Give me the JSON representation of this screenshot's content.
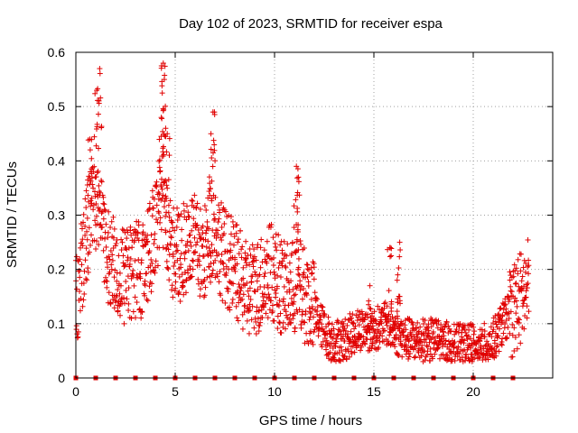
{
  "chart_data": {
    "type": "scatter",
    "title": "Day 102 of 2023, SRMTID for receiver espa",
    "xlabel": "GPS time / hours",
    "ylabel": "SRMTID / TECUs",
    "xlim": [
      0,
      24
    ],
    "ylim": [
      0,
      0.6
    ],
    "xticks": [
      0,
      5,
      10,
      15,
      20
    ],
    "xtick_labels": [
      "0",
      "5",
      "10",
      "15",
      "20"
    ],
    "yticks": [
      0,
      0.1,
      0.2,
      0.3,
      0.4,
      0.5,
      0.6
    ],
    "ytick_labels": [
      "0",
      "0.1",
      "0.2",
      "0.3",
      "0.4",
      "0.5",
      "0.6"
    ],
    "grid": true,
    "marker": "plus",
    "color": "#e00000",
    "trend": [
      {
        "x": 0.0,
        "y": 0.13
      },
      {
        "x": 0.3,
        "y": 0.2
      },
      {
        "x": 0.6,
        "y": 0.28
      },
      {
        "x": 0.9,
        "y": 0.33
      },
      {
        "x": 1.2,
        "y": 0.3
      },
      {
        "x": 1.6,
        "y": 0.22
      },
      {
        "x": 2.0,
        "y": 0.21
      },
      {
        "x": 2.5,
        "y": 0.18
      },
      {
        "x": 3.0,
        "y": 0.2
      },
      {
        "x": 3.5,
        "y": 0.2
      },
      {
        "x": 4.0,
        "y": 0.28
      },
      {
        "x": 4.4,
        "y": 0.33
      },
      {
        "x": 4.8,
        "y": 0.24
      },
      {
        "x": 5.2,
        "y": 0.22
      },
      {
        "x": 5.8,
        "y": 0.26
      },
      {
        "x": 6.4,
        "y": 0.22
      },
      {
        "x": 6.9,
        "y": 0.28
      },
      {
        "x": 7.4,
        "y": 0.23
      },
      {
        "x": 8.0,
        "y": 0.2
      },
      {
        "x": 8.6,
        "y": 0.16
      },
      {
        "x": 9.2,
        "y": 0.17
      },
      {
        "x": 9.8,
        "y": 0.2
      },
      {
        "x": 10.5,
        "y": 0.16
      },
      {
        "x": 11.2,
        "y": 0.17
      },
      {
        "x": 11.8,
        "y": 0.14
      },
      {
        "x": 12.3,
        "y": 0.1
      },
      {
        "x": 12.8,
        "y": 0.07
      },
      {
        "x": 13.5,
        "y": 0.07
      },
      {
        "x": 14.2,
        "y": 0.09
      },
      {
        "x": 15.0,
        "y": 0.09
      },
      {
        "x": 15.6,
        "y": 0.1
      },
      {
        "x": 16.2,
        "y": 0.08
      },
      {
        "x": 16.8,
        "y": 0.07
      },
      {
        "x": 17.5,
        "y": 0.07
      },
      {
        "x": 18.2,
        "y": 0.07
      },
      {
        "x": 19.0,
        "y": 0.06
      },
      {
        "x": 19.8,
        "y": 0.06
      },
      {
        "x": 20.5,
        "y": 0.06
      },
      {
        "x": 21.0,
        "y": 0.07
      },
      {
        "x": 21.5,
        "y": 0.1
      },
      {
        "x": 22.0,
        "y": 0.13
      },
      {
        "x": 22.5,
        "y": 0.15
      },
      {
        "x": 22.8,
        "y": 0.17
      }
    ],
    "bursts": [
      {
        "x": 1.05,
        "y": 0.53
      },
      {
        "x": 1.2,
        "y": 0.57
      },
      {
        "x": 0.7,
        "y": 0.44
      },
      {
        "x": 4.4,
        "y": 0.58
      },
      {
        "x": 4.45,
        "y": 0.55
      },
      {
        "x": 4.3,
        "y": 0.48
      },
      {
        "x": 4.6,
        "y": 0.45
      },
      {
        "x": 6.9,
        "y": 0.49
      },
      {
        "x": 6.8,
        "y": 0.45
      },
      {
        "x": 11.1,
        "y": 0.39
      },
      {
        "x": 11.2,
        "y": 0.37
      },
      {
        "x": 15.8,
        "y": 0.24
      },
      {
        "x": 16.3,
        "y": 0.25
      },
      {
        "x": 16.2,
        "y": 0.19
      },
      {
        "x": 14.8,
        "y": 0.17
      }
    ],
    "zero_markers_x": [
      0.0,
      1.0,
      2.0,
      3.0,
      4.0,
      5.0,
      6.0,
      7.0,
      8.0,
      9.0,
      10.0,
      11.0,
      12.0,
      13.0,
      14.0,
      15.0,
      16.0,
      17.0,
      18.0,
      19.0,
      20.0,
      21.0,
      22.0
    ]
  }
}
